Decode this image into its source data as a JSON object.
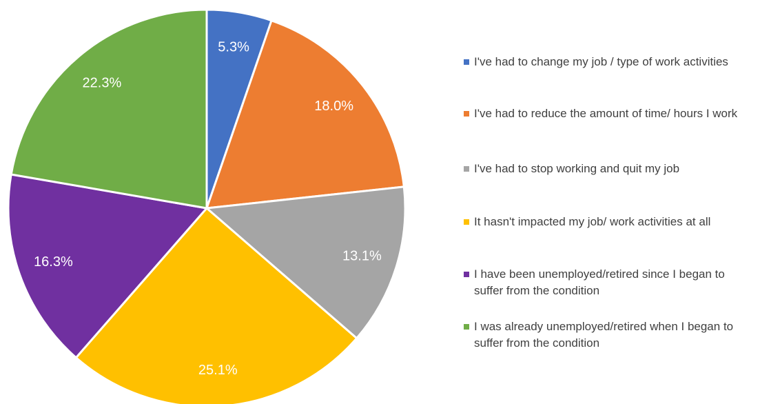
{
  "chart_data": {
    "type": "pie",
    "categories": [
      "I've had to change my job / type of work activities",
      "I've had to reduce the amount of time/ hours I work",
      "I've had to stop working and quit my job",
      "It hasn't impacted my job/ work activities at all",
      "I have been unemployed/retired since I began to suffer from the condition",
      "I was already unemployed/retired when I began to suffer from the condition"
    ],
    "values": [
      5.3,
      18.0,
      13.1,
      25.1,
      16.3,
      22.3
    ],
    "value_labels": [
      "5.3%",
      "18.0%",
      "13.1%",
      "25.1%",
      "16.3%",
      "22.3%"
    ],
    "colors": [
      "#4472c4",
      "#ed7d31",
      "#a5a5a5",
      "#ffc000",
      "#7030a0",
      "#70ad47"
    ],
    "legend": "right"
  }
}
